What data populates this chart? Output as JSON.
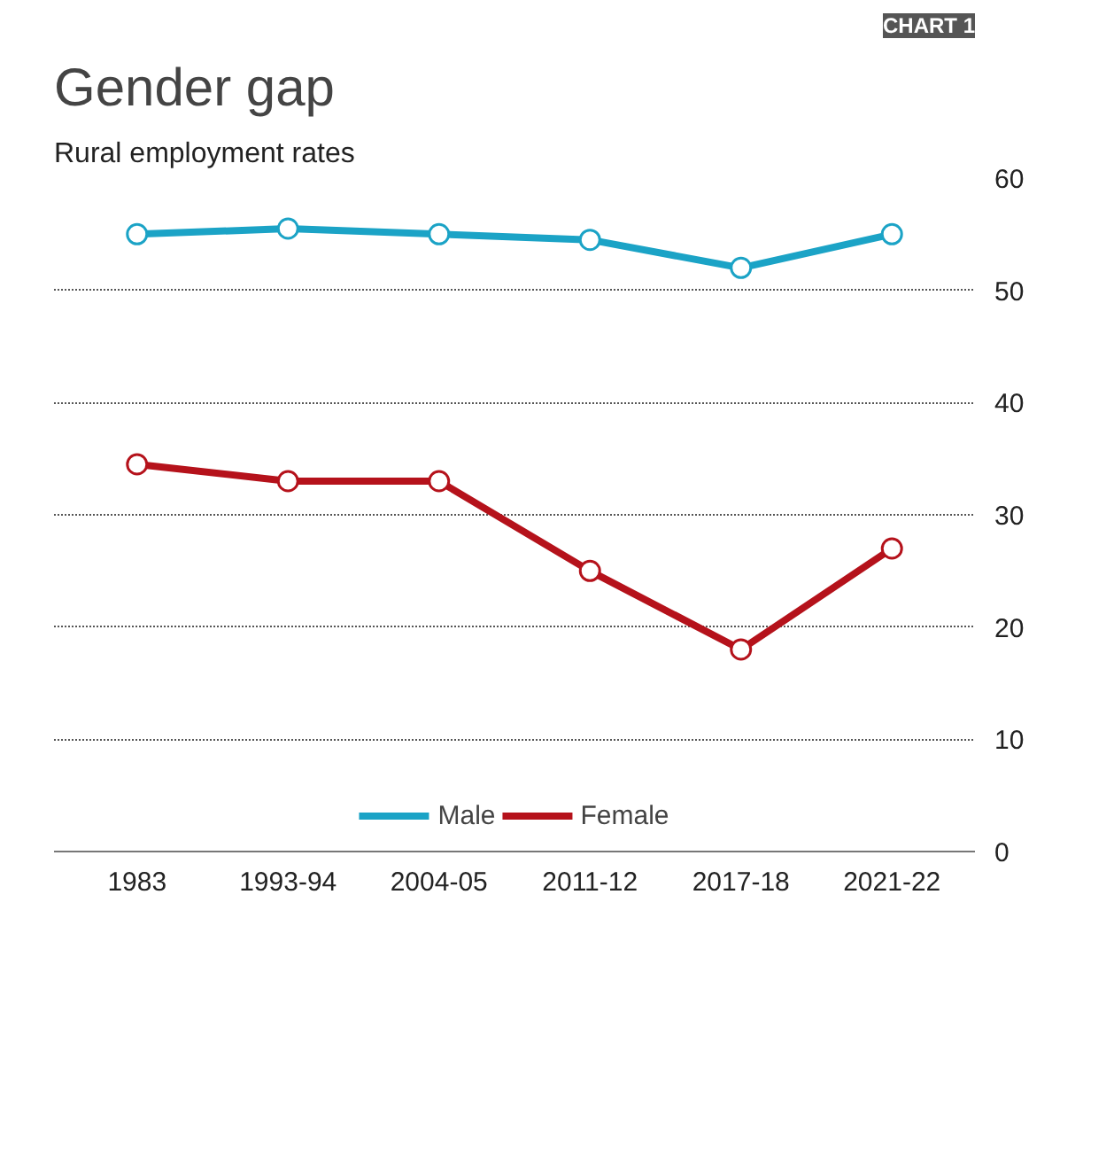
{
  "chart_data": {
    "type": "line",
    "title": "Gender gap",
    "subtitle": "Rural employment rates",
    "annotations": [
      "CHART 1"
    ],
    "categories": [
      "1983",
      "1993-94",
      "2004-05",
      "2011-12",
      "2017-18",
      "2021-22"
    ],
    "series": [
      {
        "name": "Male",
        "color": "#1ba3c6",
        "values": [
          55,
          55.5,
          55,
          54.5,
          52,
          55
        ]
      },
      {
        "name": "Female",
        "color": "#b5121b",
        "values": [
          34.5,
          33,
          33,
          25,
          18,
          27
        ]
      }
    ],
    "ylim": [
      0,
      60
    ],
    "yticks": [
      0,
      10,
      20,
      30,
      40,
      50,
      60
    ],
    "grid": "y",
    "legend": "bottom",
    "marker": "circle",
    "line_style": "solid"
  }
}
